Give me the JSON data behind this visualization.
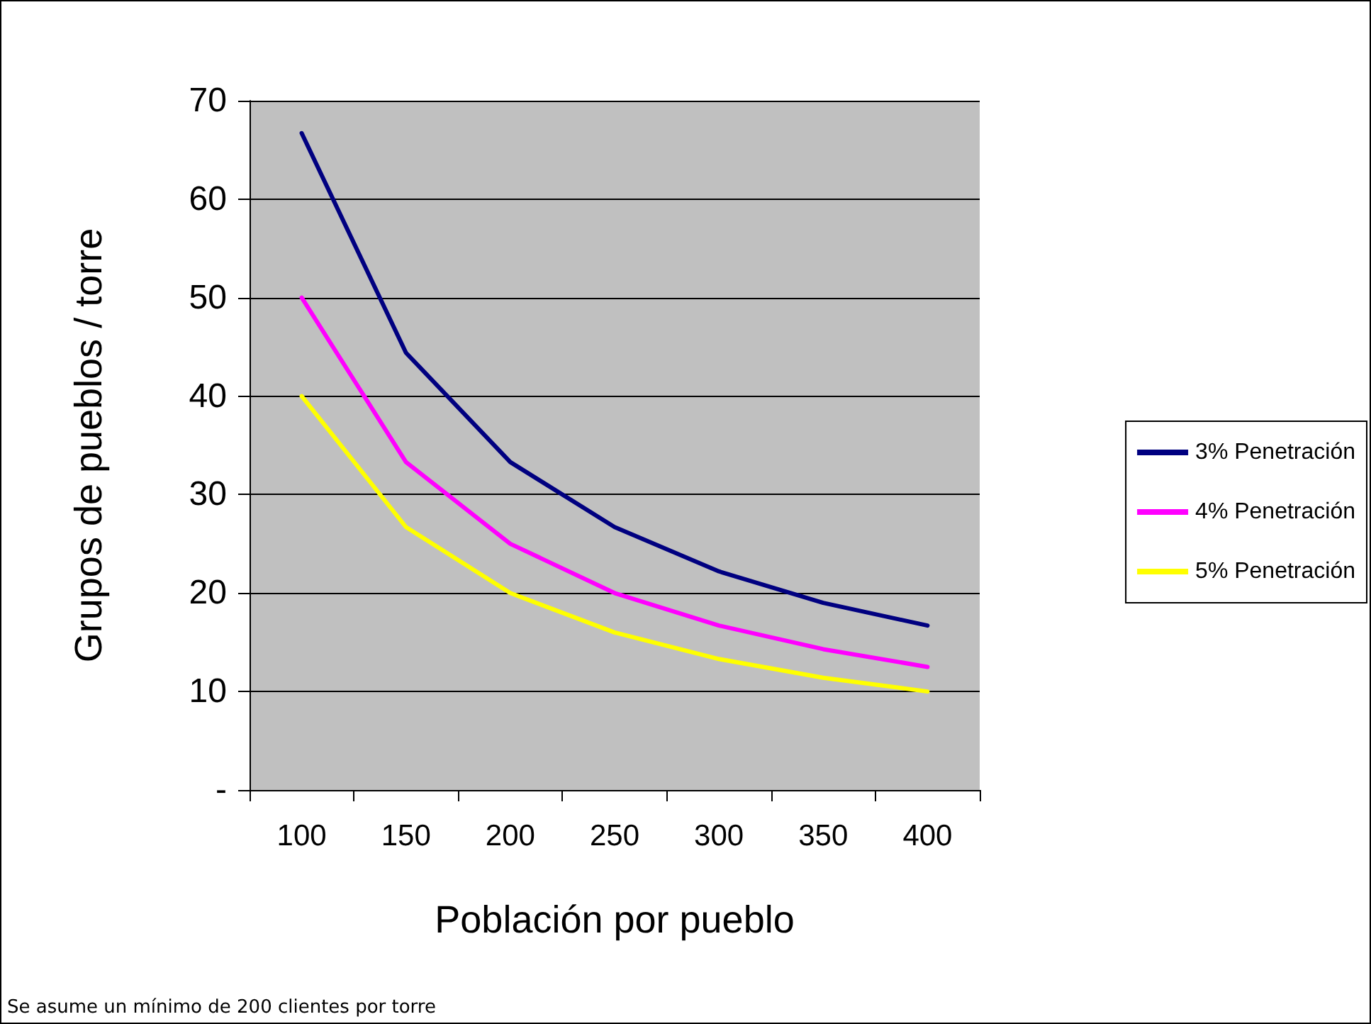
{
  "chart_data": {
    "type": "line",
    "xlabel": "Población por pueblo",
    "ylabel": "Grupos de pueblos / torre",
    "categories": [
      "100",
      "150",
      "200",
      "250",
      "300",
      "350",
      "400"
    ],
    "series": [
      {
        "name": "3% Penetración",
        "color": "#000080",
        "values": [
          66.7,
          44.4,
          33.3,
          26.7,
          22.2,
          19.0,
          16.7
        ]
      },
      {
        "name": "4% Penetración",
        "color": "#ff00ff",
        "values": [
          50,
          33.3,
          25,
          20,
          16.7,
          14.3,
          12.5
        ]
      },
      {
        "name": "5% Penetración",
        "color": "#ffff00",
        "values": [
          40,
          26.7,
          20,
          16,
          13.3,
          11.4,
          10
        ]
      }
    ],
    "ylim": [
      0,
      70
    ],
    "yticks": [
      {
        "value": 0,
        "label": "-"
      },
      10,
      20,
      30,
      40,
      50,
      60,
      70
    ],
    "grid": "y",
    "legend": "right",
    "marker": "none",
    "line_style": "solid",
    "annotations": [
      "Se asume un mínimo de 200 clientes por torre"
    ]
  }
}
